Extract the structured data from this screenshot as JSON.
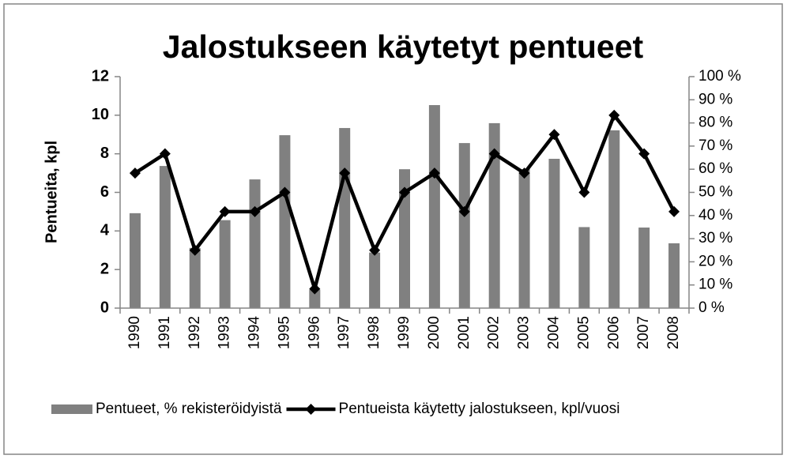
{
  "chart_data": {
    "type": "bar-line",
    "title": "Jalostukseen käytetyt pentueet",
    "y_label": "Pentueita, kpl",
    "categories": [
      "1990",
      "1991",
      "1992",
      "1993",
      "1994",
      "1995",
      "1996",
      "1997",
      "1998",
      "1999",
      "2000",
      "2001",
      "2002",
      "2003",
      "2004",
      "2005",
      "2006",
      "2007",
      "2008"
    ],
    "series": [
      {
        "name": "Pentueet, % rekisteröidyistä",
        "type": "bar",
        "axis": "y2",
        "color": "#808080",
        "values": [
          41,
          61.4,
          26,
          38,
          55.6,
          74.7,
          8,
          77.8,
          24,
          60,
          87.7,
          71.3,
          79.9,
          60,
          64.5,
          35,
          76.8,
          34.8,
          28
        ]
      },
      {
        "name": "Pentueista käytetty jalostukseen, kpl/vuosi",
        "type": "line",
        "axis": "y",
        "color": "#000000",
        "values": [
          7,
          8,
          3,
          5,
          5,
          6,
          1,
          7,
          3,
          6,
          7,
          5,
          8,
          7,
          9,
          6,
          10,
          8,
          5
        ]
      }
    ],
    "ylim": [
      0,
      12
    ],
    "yticks": [
      0,
      2,
      4,
      6,
      8,
      10,
      12
    ],
    "y2lim": [
      0,
      100
    ],
    "y2ticks": [
      {
        "value": 0,
        "label": "0 %"
      },
      {
        "value": 10,
        "label": "10 %"
      },
      {
        "value": 20,
        "label": "20 %"
      },
      {
        "value": 30,
        "label": "30 %"
      },
      {
        "value": 40,
        "label": "40 %"
      },
      {
        "value": 50,
        "label": "50 %"
      },
      {
        "value": 60,
        "label": "60 %"
      },
      {
        "value": 70,
        "label": "70 %"
      },
      {
        "value": 80,
        "label": "80 %"
      },
      {
        "value": 90,
        "label": "90 %"
      },
      {
        "value": 100,
        "label": "100 %"
      }
    ],
    "legend": "bottom"
  }
}
